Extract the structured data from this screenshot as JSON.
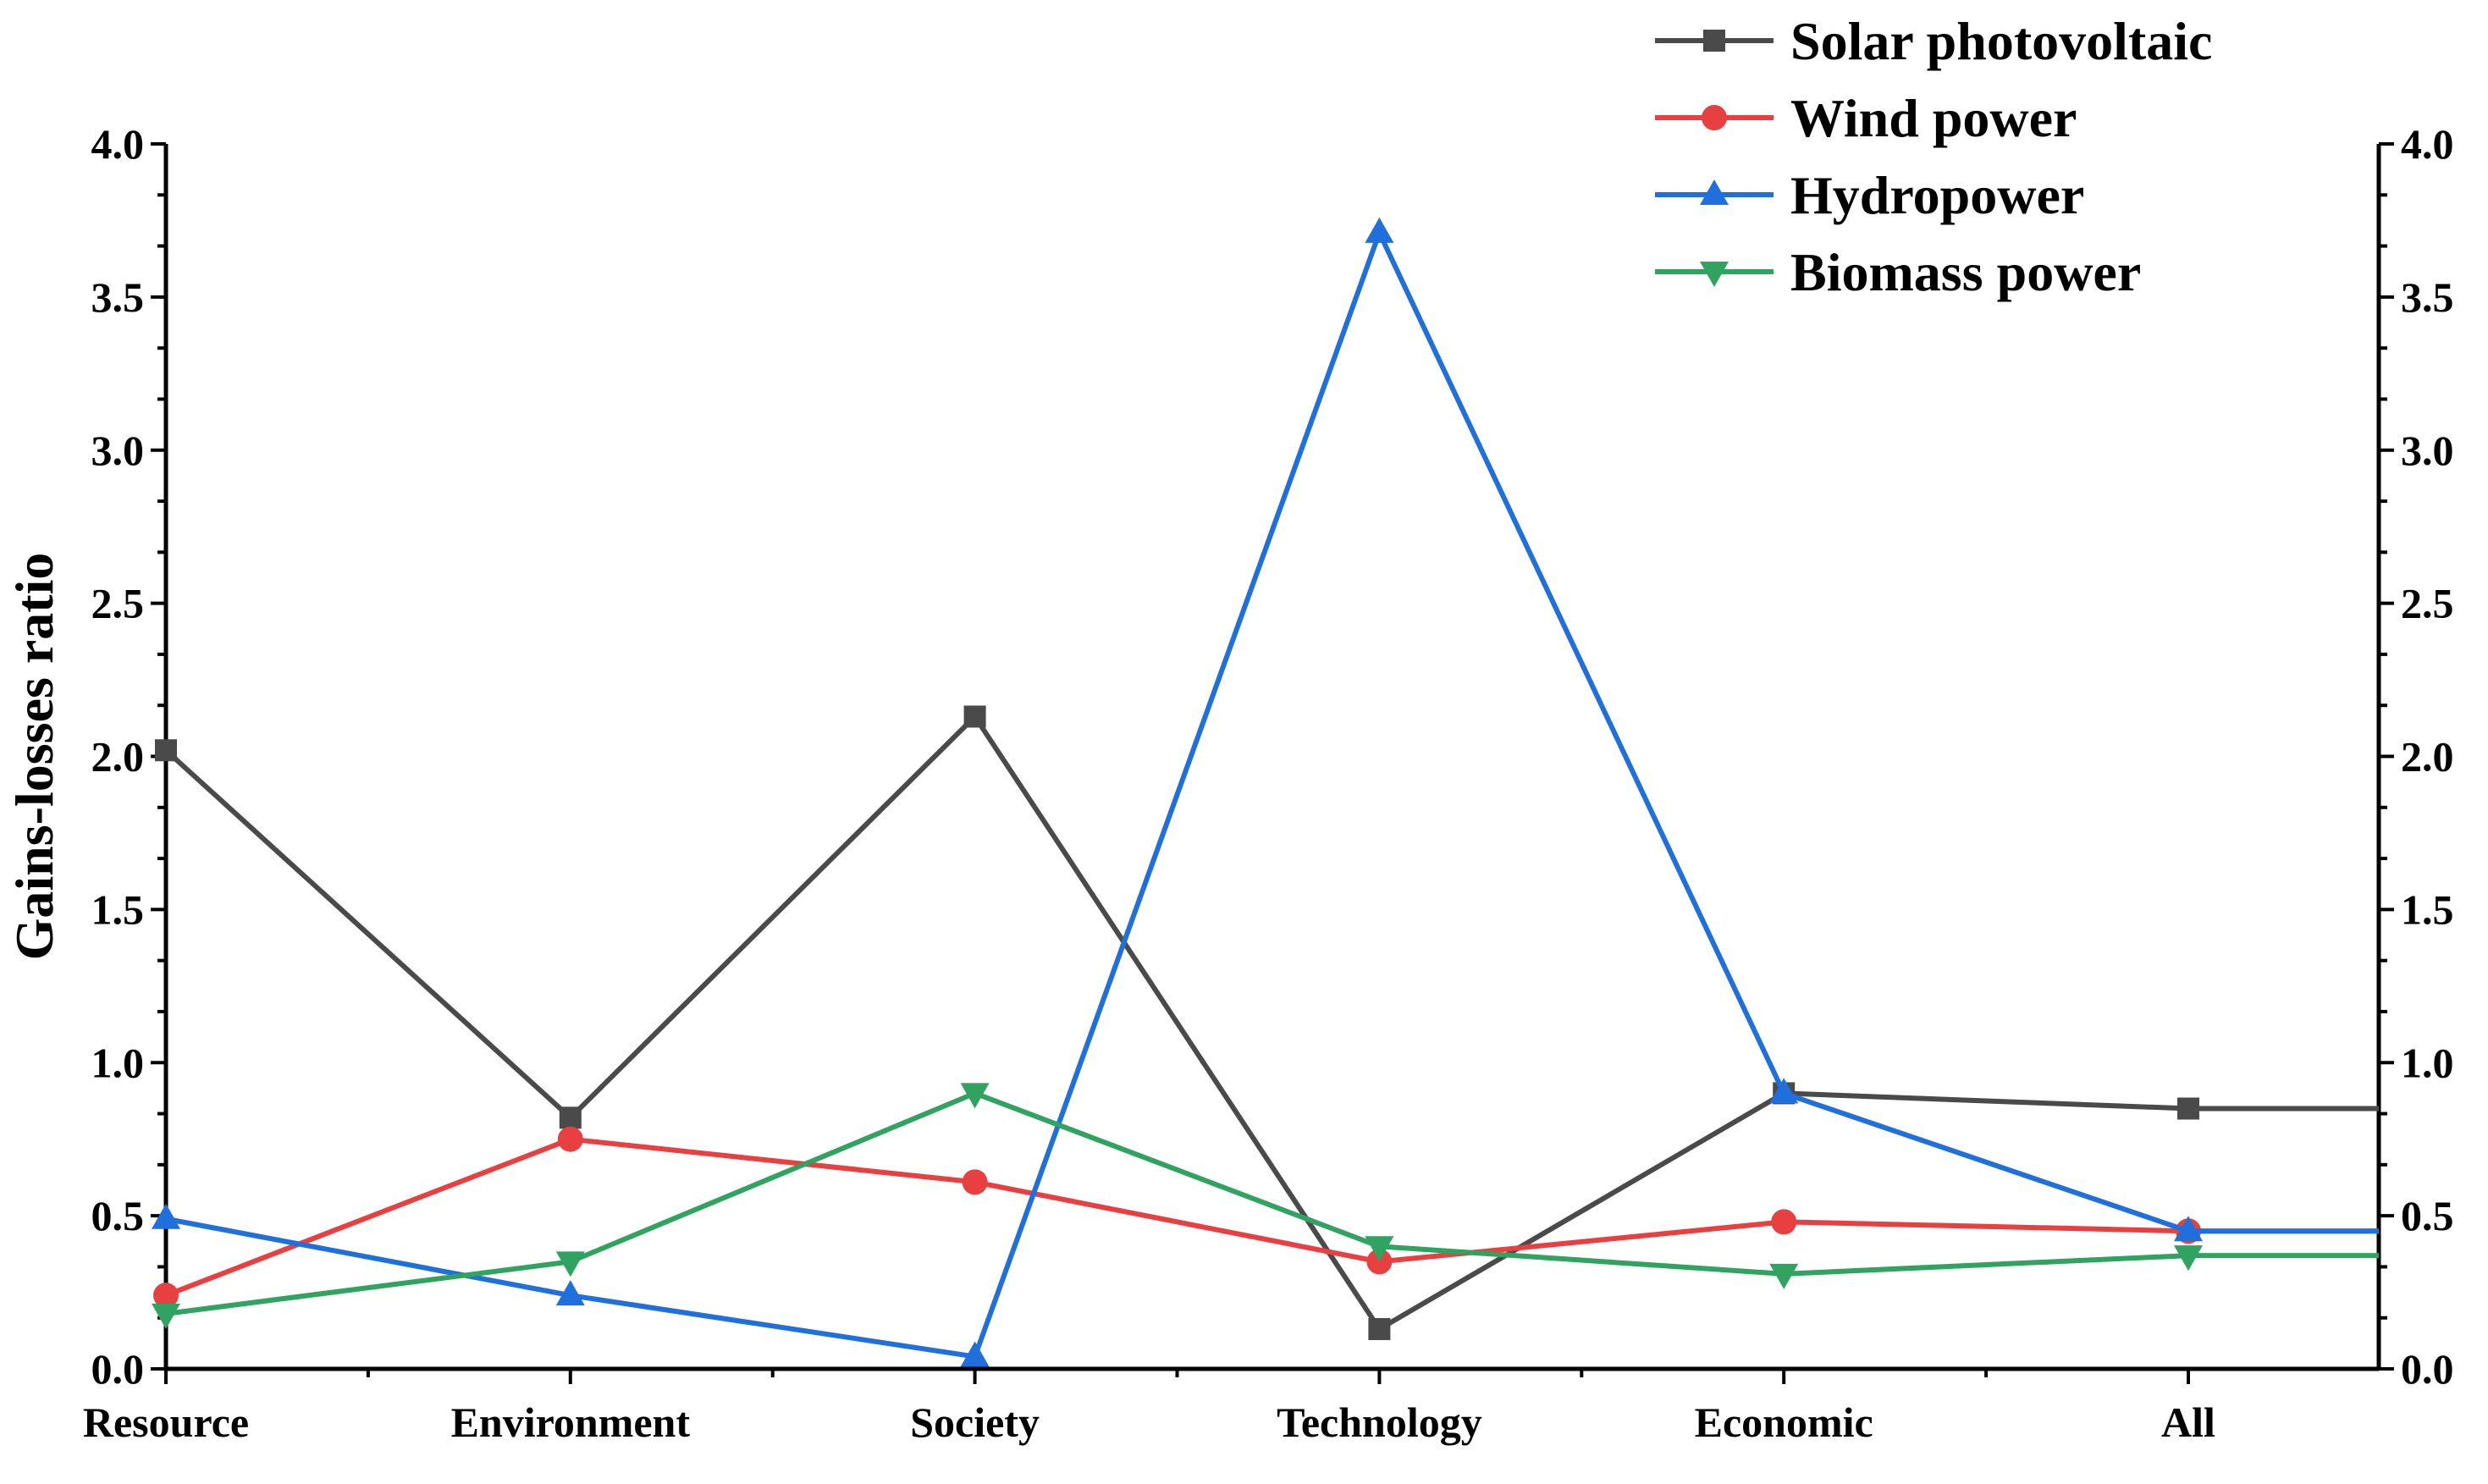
{
  "chart_data": {
    "type": "line",
    "title": "",
    "xlabel": "",
    "ylabel": "Gains-losses ratio",
    "ylim": [
      0,
      4.0
    ],
    "yticks": [
      "0.0",
      "0.5",
      "1.0",
      "1.5",
      "2.0",
      "2.5",
      "3.0",
      "3.5",
      "4.0"
    ],
    "y_right_axis": true,
    "grid": false,
    "legend_position": "top-right",
    "categories": [
      "Resource",
      "Environment",
      "Society",
      "Technology",
      "Economic",
      "All"
    ],
    "series": [
      {
        "name": "Solar photovoltaic",
        "color": "#4a4a4a",
        "marker": "square",
        "values": [
          2.02,
          0.82,
          2.13,
          0.13,
          0.9,
          0.85
        ]
      },
      {
        "name": "Wind power",
        "color": "#e84040",
        "marker": "circle",
        "values": [
          0.24,
          0.75,
          0.61,
          0.35,
          0.48,
          0.45
        ]
      },
      {
        "name": "Hydropower",
        "color": "#1f6fdc",
        "marker": "triangle-up",
        "values": [
          0.49,
          0.24,
          0.04,
          3.71,
          0.9,
          0.45
        ]
      },
      {
        "name": "Biomass power",
        "color": "#2fa35f",
        "marker": "triangle-down",
        "values": [
          0.18,
          0.35,
          0.9,
          0.4,
          0.31,
          0.37
        ]
      }
    ]
  }
}
